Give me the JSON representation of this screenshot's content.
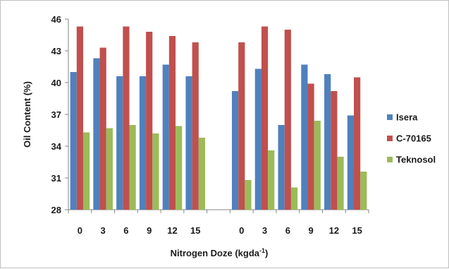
{
  "chart_data": {
    "type": "bar",
    "categories": [
      "0",
      "3",
      "6",
      "9",
      "12",
      "15",
      "",
      "0",
      "3",
      "6",
      "9",
      "12",
      "15"
    ],
    "series": [
      {
        "name": "Isera",
        "color": "#4f81bd",
        "values": [
          41.0,
          42.3,
          40.6,
          40.6,
          41.7,
          40.6,
          null,
          39.2,
          41.3,
          36.0,
          41.7,
          40.8,
          36.9
        ]
      },
      {
        "name": "C-70165",
        "color": "#c0504d",
        "values": [
          45.3,
          43.3,
          45.3,
          44.8,
          44.4,
          43.8,
          null,
          43.8,
          45.3,
          45.0,
          39.9,
          39.2,
          40.5
        ]
      },
      {
        "name": "Teknosol",
        "color": "#9bbb59",
        "values": [
          35.3,
          35.7,
          36.0,
          35.2,
          35.9,
          34.8,
          null,
          30.8,
          33.6,
          30.1,
          36.4,
          33.0,
          31.6
        ]
      }
    ],
    "xlabel": "Nitrogen Doze (kgda",
    "xlabel_sup": "-1",
    "xlabel_suffix": ")",
    "ylabel": "Oil Content (%)",
    "ylim": [
      28,
      46
    ],
    "yticks": [
      "28",
      "31",
      "34",
      "37",
      "40",
      "43",
      "46"
    ],
    "legend_position": "right",
    "grid": false
  }
}
